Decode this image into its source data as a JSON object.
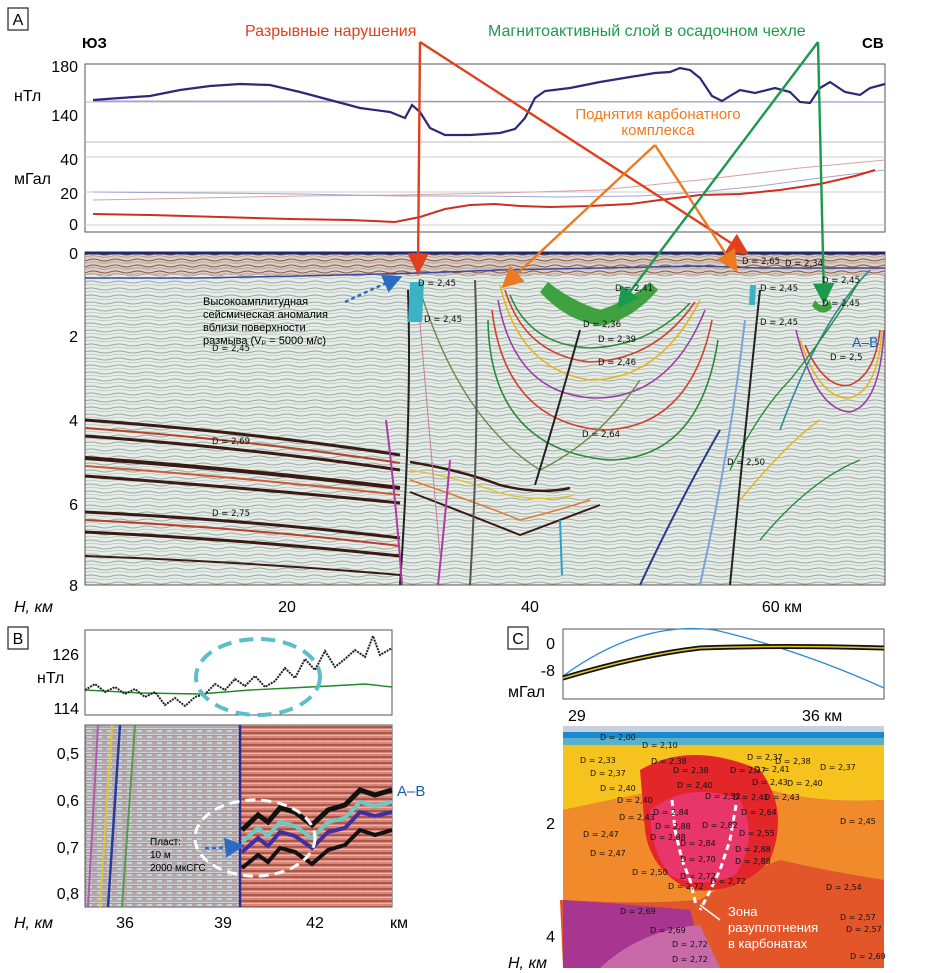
{
  "panelA": {
    "letter": "A",
    "sw": "ЮЗ",
    "ne": "СВ",
    "y_mag_unit": "нТл",
    "y_grav_unit": "мГал",
    "mag_ticks": [
      "180",
      "140"
    ],
    "grav_ticks": [
      "40",
      "20",
      "0"
    ],
    "depth_ticks": [
      "0",
      "2",
      "4",
      "6",
      "8"
    ],
    "x_ticks": [
      "20",
      "40",
      "60 км"
    ],
    "x_axis_label": "H, км",
    "ann_faults": "Разрывные нарушения",
    "ann_magnetic": "Магнитоактивный слой в осадочном чехле",
    "ann_uplift_1": "Поднятия карбонатного",
    "ann_uplift_2": "комплекса",
    "ann_seismic_1": "Высокоамплитудная",
    "ann_seismic_2": "сейсмическая аномалия",
    "ann_seismic_3": "вблизи поверхности",
    "ann_seismic_4": "размыва (Vₚ = 5000 м/с)",
    "profile_label": "А–В",
    "densities": [
      "D = 2,45",
      "D = 2,45",
      "D = 2,45",
      "D = 2,41",
      "D = 2,36",
      "D = 2,39",
      "D = 2,46",
      "D = 2,65",
      "D = 2,34",
      "D = 2,45",
      "D = 2,45",
      "D = 2,45",
      "D = 2,45",
      "D = 2,5",
      "D = 2,69",
      "D = 2,64",
      "D = 2,50",
      "D = 2,75"
    ]
  },
  "panelB": {
    "letter": "B",
    "mag_ticks": [
      "126",
      "114"
    ],
    "y_unit": "нТл",
    "depth_ticks": [
      "0,5",
      "0,6",
      "0,7",
      "0,8"
    ],
    "x_ticks": [
      "36",
      "39",
      "42",
      "км"
    ],
    "x_axis_label": "H, км",
    "profile_label": "А–В",
    "ann_layer_1": "Пласт:",
    "ann_layer_2": "10 м",
    "ann_layer_3": "2000 мкСГС"
  },
  "panelC": {
    "letter": "C",
    "grav_ticks": [
      "0",
      "-8"
    ],
    "y_unit": "мГал",
    "x_ticks": [
      "29",
      "36 км"
    ],
    "depth_ticks": [
      "2",
      "4"
    ],
    "x_axis_label": "H, км",
    "zone_1": "Зона",
    "zone_2": "разуплотнения",
    "zone_3": "в карбонатах",
    "densities": [
      "D = 2,00",
      "D = 2,10",
      "D = 2,33",
      "D = 2,38",
      "D = 2,37",
      "D = 2,38",
      "D = 2,37",
      "D = 2,37",
      "D = 2,38",
      "D = 2,40",
      "D = 2,41",
      "D = 2,37",
      "D = 2,40",
      "D = 2,40",
      "D = 2,43",
      "D = 2,40",
      "D = 2,52",
      "D = 2,41",
      "D = 2,43",
      "D = 2,84",
      "D = 2,64",
      "D = 2,43",
      "D = 2,47",
      "D = 2,88",
      "D = 2,82",
      "D = 2,55",
      "D = 2,45",
      "D = 2,84",
      "D = 2,88",
      "D = 2,47",
      "D = 2,70",
      "D = 2,88",
      "D = 2,50",
      "D = 2,72",
      "D = 2,88",
      "D = 2,72",
      "D = 2,72",
      "D = 2,54",
      "D = 2,69",
      "D = 2,57",
      "D = 2,69",
      "D = 2,57",
      "D = 2,72",
      "D = 2,69",
      "D = 2,72"
    ]
  }
}
